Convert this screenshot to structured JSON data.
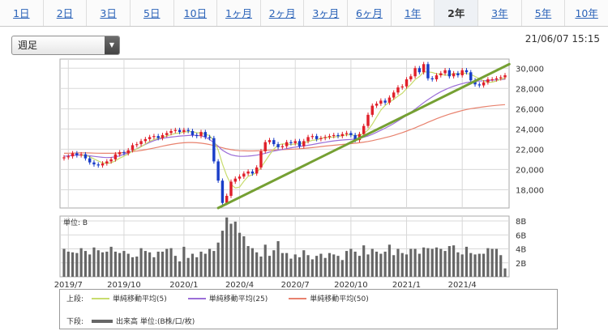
{
  "period_tabs": [
    {
      "label": "1日",
      "active": false
    },
    {
      "label": "2日",
      "active": false
    },
    {
      "label": "3日",
      "active": false
    },
    {
      "label": "5日",
      "active": false
    },
    {
      "label": "10日",
      "active": false
    },
    {
      "label": "1ヶ月",
      "active": false
    },
    {
      "label": "2ヶ月",
      "active": false
    },
    {
      "label": "3ヶ月",
      "active": false
    },
    {
      "label": "6ヶ月",
      "active": false
    },
    {
      "label": "1年",
      "active": false
    },
    {
      "label": "2年",
      "active": true
    },
    {
      "label": "3年",
      "active": false
    },
    {
      "label": "5年",
      "active": false
    },
    {
      "label": "10年",
      "active": false
    }
  ],
  "interval_select": {
    "value": "週足",
    "icon": "triangle-down-icon"
  },
  "timestamp": "21/06/07 15:15",
  "legend": {
    "upper_label": "上段:",
    "lower_label": "下段:",
    "items": [
      {
        "name": "単純移動平均(5)",
        "color": "#c8dc6e"
      },
      {
        "name": "単純移動平均(25)",
        "color": "#9b6ed8"
      },
      {
        "name": "単純移動平均(50)",
        "color": "#e8826e"
      }
    ],
    "volume_name": "出来高 単位:(B株/口/枚)",
    "volume_color": "#666666"
  },
  "chart_data": {
    "type": "candlestick",
    "price_axis": {
      "ticks": [
        18000,
        20000,
        22000,
        24000,
        26000,
        28000,
        30000
      ],
      "tick_labels": [
        "18,000",
        "20,000",
        "22,000",
        "24,000",
        "26,000",
        "28,000",
        "30,000"
      ],
      "range": [
        16200,
        30900
      ]
    },
    "volume_axis": {
      "unit_label": "単位: B",
      "ticks": [
        2,
        4,
        6,
        8
      ],
      "tick_labels": [
        "2B",
        "4B",
        "6B",
        "8B"
      ],
      "range": [
        0,
        8
      ]
    },
    "x_labels": [
      {
        "label": "2019/7",
        "week": 1
      },
      {
        "label": "2019/10",
        "week": 14
      },
      {
        "label": "2020/1",
        "week": 28
      },
      {
        "label": "2020/4",
        "week": 41
      },
      {
        "label": "2020/7",
        "week": 54
      },
      {
        "label": "2020/10",
        "week": 67
      },
      {
        "label": "2021/1",
        "week": 80
      },
      {
        "label": "2021/4",
        "week": 93
      }
    ],
    "weeks": 104,
    "close": [
      21200,
      21300,
      21600,
      21400,
      21500,
      21100,
      20700,
      20500,
      20400,
      20600,
      20800,
      21000,
      21500,
      21700,
      21600,
      21900,
      22400,
      22500,
      22800,
      23000,
      23200,
      23300,
      23100,
      23400,
      23600,
      23800,
      23900,
      23700,
      23900,
      23800,
      23400,
      23300,
      23700,
      23200,
      23100,
      20800,
      18900,
      16700,
      17400,
      18800,
      19100,
      19300,
      19600,
      19800,
      19600,
      20200,
      21800,
      22700,
      22900,
      22500,
      22200,
      22300,
      22700,
      22600,
      22800,
      22300,
      22800,
      23200,
      23300,
      23000,
      23100,
      23200,
      23300,
      23400,
      23300,
      23500,
      23600,
      23400,
      22900,
      23500,
      24300,
      25400,
      26300,
      26500,
      26800,
      26600,
      27100,
      27600,
      28100,
      28200,
      28900,
      29200,
      30000,
      29600,
      30400,
      29000,
      28900,
      29300,
      29500,
      29800,
      29200,
      29500,
      29300,
      29800,
      29600,
      28800,
      28400,
      28300,
      28600,
      28900,
      28900,
      29000,
      29100,
      29300
    ],
    "ma_5": [
      null,
      null,
      null,
      null,
      21400,
      21380,
      21260,
      21040,
      20840,
      20660,
      20600,
      20660,
      20860,
      21120,
      21320,
      21540,
      21820,
      22020,
      22240,
      22520,
      22780,
      22960,
      23080,
      23200,
      23320,
      23440,
      23560,
      23600,
      23700,
      23740,
      23740,
      23620,
      23620,
      23480,
      23340,
      22820,
      21940,
      20540,
      19380,
      18520,
      18180,
      18260,
      18840,
      19320,
      19480,
      19700,
      20200,
      20820,
      21440,
      22020,
      22420,
      22520,
      22520,
      22460,
      22520,
      22540,
      22640,
      22740,
      22880,
      22920,
      23080,
      23160,
      23180,
      23200,
      23260,
      23340,
      23420,
      23440,
      23340,
      23380,
      23540,
      23900,
      24480,
      25180,
      25860,
      26320,
      26660,
      26920,
      27240,
      27520,
      27980,
      28400,
      28880,
      29180,
      29620,
      29640,
      29580,
      29440,
      29420,
      29300,
      29340,
      29460,
      29460,
      29520,
      29480,
      29400,
      29180,
      28980,
      28740,
      28600,
      28620,
      28740,
      28900,
      29040
    ],
    "ma_25": [
      21300,
      21350,
      21400,
      21420,
      21430,
      21410,
      21350,
      21300,
      21250,
      21200,
      21180,
      21190,
      21250,
      21350,
      21500,
      21650,
      21850,
      22050,
      22280,
      22480,
      22680,
      22850,
      22980,
      23080,
      23150,
      23200,
      23250,
      23300,
      23330,
      23360,
      23380,
      23370,
      23330,
      23200,
      22950,
      22650,
      22300,
      21900,
      21650,
      21450,
      21350,
      21300,
      21300,
      21320,
      21360,
      21420,
      21500,
      21600,
      21720,
      21820,
      21900,
      21980,
      22060,
      22140,
      22210,
      22270,
      22330,
      22390,
      22460,
      22540,
      22620,
      22690,
      22760,
      22820,
      22870,
      22910,
      22940,
      22970,
      23010,
      23070,
      23180,
      23310,
      23480,
      23680,
      23880,
      24080,
      24300,
      24540,
      24800,
      25060,
      25340,
      25640,
      25960,
      26280,
      26600,
      26900,
      27180,
      27440,
      27680,
      27880,
      28060,
      28220,
      28360,
      28480,
      28580,
      28650,
      28700,
      28730,
      28760,
      28790,
      28820,
      28850,
      28880,
      28910
    ],
    "ma_50": [
      21600,
      21610,
      21620,
      21630,
      21640,
      21640,
      21630,
      21620,
      21610,
      21600,
      21600,
      21600,
      21610,
      21640,
      21680,
      21720,
      21770,
      21820,
      21880,
      21950,
      22030,
      22120,
      22210,
      22300,
      22390,
      22470,
      22540,
      22600,
      22640,
      22660,
      22660,
      22640,
      22600,
      22540,
      22460,
      22360,
      22250,
      22140,
      22040,
      21960,
      21900,
      21860,
      21840,
      21830,
      21830,
      21840,
      21860,
      21880,
      21900,
      21920,
      21940,
      21960,
      21980,
      22000,
      22020,
      22050,
      22080,
      22120,
      22160,
      22210,
      22260,
      22310,
      22350,
      22390,
      22430,
      22470,
      22510,
      22550,
      22590,
      22640,
      22700,
      22770,
      22850,
      22940,
      23040,
      23140,
      23250,
      23370,
      23500,
      23640,
      23790,
      23950,
      24120,
      24300,
      24480,
      24660,
      24840,
      25010,
      25170,
      25320,
      25460,
      25590,
      25710,
      25820,
      25920,
      26000,
      26070,
      26130,
      26190,
      26240,
      26290,
      26330,
      26370,
      26400
    ],
    "volume": [
      4.0,
      3.6,
      3.5,
      3.4,
      4.1,
      3.7,
      3.2,
      4.2,
      3.8,
      3.5,
      3.6,
      4.3,
      3.6,
      3.4,
      3.7,
      3.3,
      2.8,
      2.9,
      4.1,
      3.7,
      3.5,
      2.8,
      3.6,
      3.6,
      4.0,
      4.1,
      3.0,
      2.2,
      4.3,
      2.7,
      3.3,
      2.8,
      3.6,
      3.3,
      4.0,
      3.7,
      4.9,
      6.6,
      8.5,
      7.6,
      7.9,
      6.3,
      5.8,
      4.4,
      4.1,
      3.5,
      2.9,
      4.6,
      3.0,
      3.8,
      5.1,
      3.4,
      3.4,
      2.6,
      3.2,
      2.8,
      3.8,
      3.1,
      2.5,
      3.0,
      3.3,
      2.7,
      3.4,
      3.2,
      3.0,
      2.4,
      3.7,
      4.0,
      3.6,
      3.0,
      4.5,
      3.2,
      4.0,
      3.6,
      3.3,
      3.6,
      4.6,
      3.1,
      4.0,
      3.4,
      3.2,
      4.0,
      4.0,
      3.3,
      4.2,
      4.1,
      4.0,
      4.2,
      4.0,
      3.7,
      4.4,
      4.5,
      3.5,
      3.2,
      4.3,
      3.4,
      3.2,
      3.3,
      3.3,
      4.1,
      4.0,
      4.0,
      3.1,
      1.2
    ],
    "trendline": {
      "from": {
        "week": 36,
        "price": 16200
      },
      "to": {
        "week": 104,
        "price": 30400
      },
      "color": "#75a033"
    }
  }
}
